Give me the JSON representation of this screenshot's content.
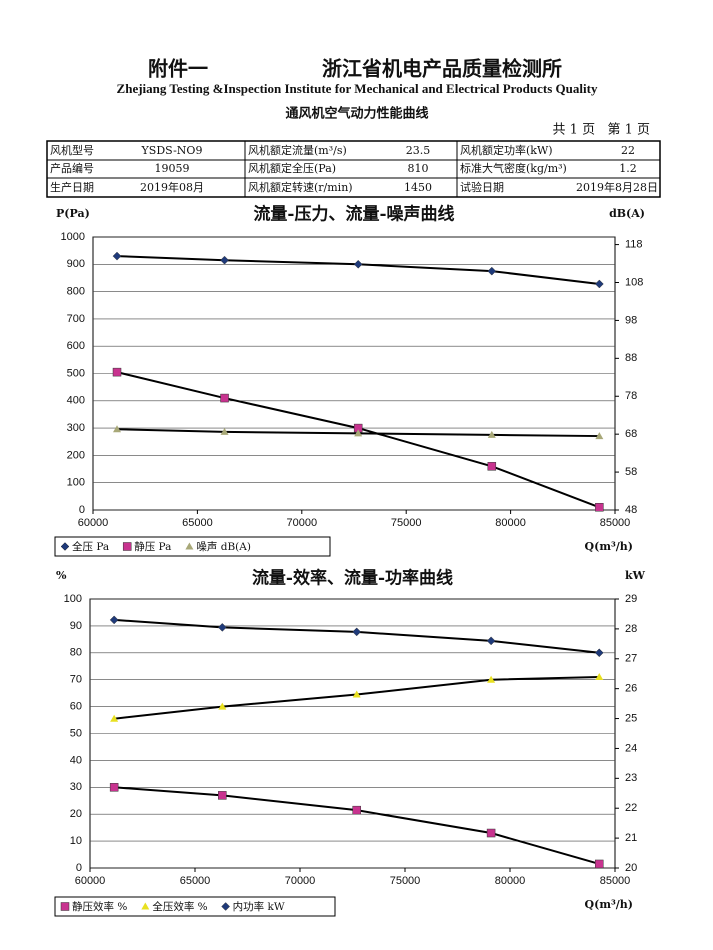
{
  "header": {
    "annex": "附件一",
    "institute_cn": "浙江省机电产品质量检测所",
    "institute_en": "Zhejiang Testing &Inspection Institute for Mechanical and Electrical Products Quality",
    "title": "通风机空气动力性能曲线",
    "pages": "共 1 页   第 1 页"
  },
  "table": {
    "rows": [
      [
        "风机型号",
        "YSDS-NO9",
        "风机额定流量(m³/s)",
        "23.5",
        "风机额定功率(kW)",
        "22"
      ],
      [
        "产品编号",
        "19059",
        "风机额定全压(Pa)",
        "810",
        "标准大气密度(kg/m³)",
        "1.2"
      ],
      [
        "生产日期",
        "2019年08月",
        "风机额定转速(r/min)",
        "1450",
        "试验日期",
        "2019年8月28日"
      ]
    ]
  },
  "chart_data": [
    {
      "type": "line",
      "title": "流量-压力、流量-噪声曲线",
      "y_label": "P(Pa)",
      "y2_label": "dB(A)",
      "x_label": "Q(m³/h)",
      "x": [
        61150,
        66300,
        72700,
        79100,
        84250
      ],
      "xlim": [
        60000,
        85000
      ],
      "xticks": [
        60000,
        65000,
        70000,
        75000,
        80000,
        85000
      ],
      "ylim": [
        0,
        1000
      ],
      "yticks": [
        0,
        100,
        200,
        300,
        400,
        500,
        600,
        700,
        800,
        900,
        1000
      ],
      "y2lim": [
        48,
        120
      ],
      "y2ticks": [
        48,
        58,
        68,
        78,
        88,
        98,
        108,
        118
      ],
      "legend": "bottom-left",
      "line_color": "#000000",
      "series": [
        {
          "name": "全压 Pa",
          "color": "#1f3a7a",
          "marker": "diamond",
          "values": [
            930,
            915,
            900,
            875,
            828
          ]
        },
        {
          "name": "静压 Pa",
          "color": "#c8338f",
          "marker": "square",
          "values": [
            505,
            410,
            300,
            160,
            10
          ]
        },
        {
          "name": "噪声 dB(A)",
          "color": "#a8a878",
          "marker": "triangle",
          "axis": "y2",
          "values": [
            69.3,
            68.6,
            68.2,
            67.8,
            67.5
          ]
        }
      ]
    },
    {
      "type": "line",
      "title": "流量-效率、流量-功率曲线",
      "y_label": "%",
      "y2_label": "kW",
      "x_label": "Q(m³/h)",
      "x": [
        61150,
        66300,
        72700,
        79100,
        84250
      ],
      "xlim": [
        60000,
        85000
      ],
      "xticks": [
        60000,
        65000,
        70000,
        75000,
        80000,
        85000
      ],
      "ylim": [
        0,
        100
      ],
      "yticks": [
        0,
        10,
        20,
        30,
        40,
        50,
        60,
        70,
        80,
        90,
        100
      ],
      "y2lim": [
        20,
        29
      ],
      "y2ticks": [
        20,
        21,
        22,
        23,
        24,
        25,
        26,
        27,
        28,
        29
      ],
      "legend": "bottom-left",
      "line_color": "#000000",
      "series": [
        {
          "name": "静压效率 %",
          "color": "#c8338f",
          "marker": "square",
          "values": [
            30,
            27,
            21.5,
            13,
            1.5
          ]
        },
        {
          "name": "全压效率 %",
          "color": "#e8e020",
          "marker": "triangle",
          "values": [
            55.5,
            60,
            64.5,
            70,
            71
          ]
        },
        {
          "name": "内功率 kW",
          "color": "#1f3a7a",
          "marker": "diamond",
          "axis": "y2",
          "values": [
            28.3,
            28.05,
            27.9,
            27.6,
            27.2
          ]
        }
      ]
    }
  ]
}
